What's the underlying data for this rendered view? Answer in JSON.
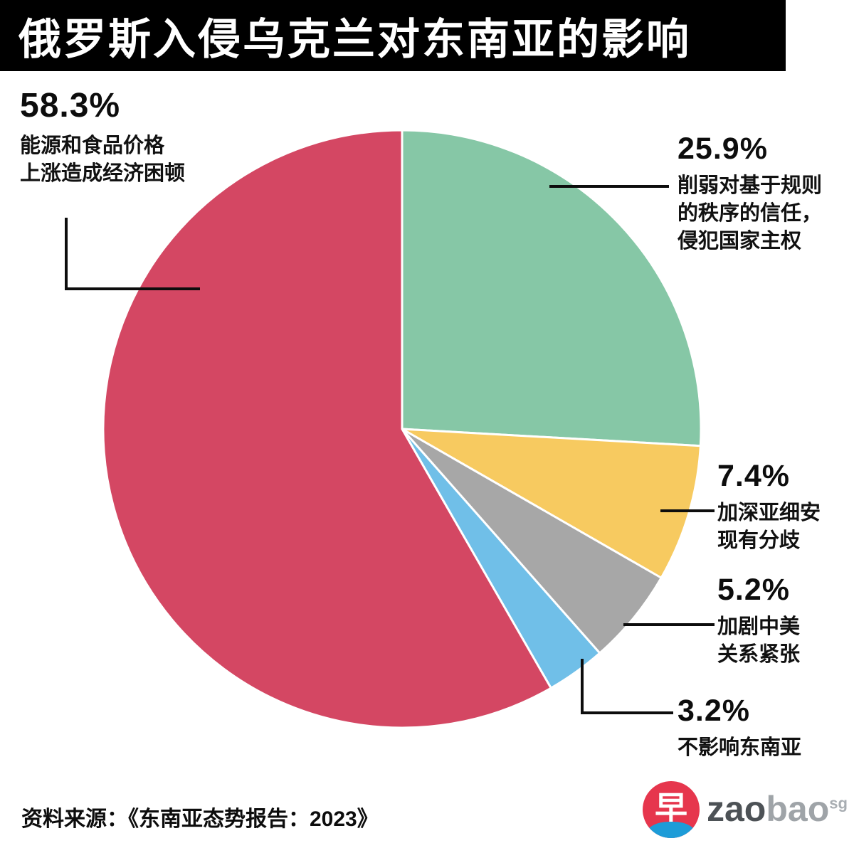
{
  "title": "俄罗斯入侵乌克兰对东南亚的影响",
  "source": "资料来源：《东南亚态势报告：2023》",
  "logo": {
    "symbol": "早",
    "brand_zao": "zao",
    "brand_bao": "bao",
    "brand_sup": "sg"
  },
  "colors": {
    "banner_bg": "#000000",
    "banner_text": "#ffffff",
    "red": "#d44763",
    "green": "#86c7a6",
    "yellow": "#f7ca60",
    "gray": "#a7a7a7",
    "blue": "#70bfe8",
    "logo_red": "#e6364d",
    "logo_blue": "#1d9cd8"
  },
  "chart_data": {
    "type": "pie",
    "title": "俄罗斯入侵乌克兰对东南亚的影响",
    "start_angle_deg": 0,
    "direction": "clockwise",
    "slices": [
      {
        "label": "削弱对基于规则的秩序的信任，侵犯国家主权",
        "value": 25.9,
        "color": "#86c7a6"
      },
      {
        "label": "加深亚细安现有分歧",
        "value": 7.4,
        "color": "#f7ca60"
      },
      {
        "label": "加剧中美关系紧张",
        "value": 5.2,
        "color": "#a7a7a7"
      },
      {
        "label": "不影响东南亚",
        "value": 3.2,
        "color": "#70bfe8"
      },
      {
        "label": "能源和食品价格上涨造成经济困顿",
        "value": 58.3,
        "color": "#d44763"
      }
    ],
    "legend_position": "callouts",
    "source": "资料来源：《东南亚态势报告：2023》"
  },
  "callouts": {
    "red": {
      "pct": "58.3%",
      "lines": [
        "能源和食品价格",
        "上涨造成经济困顿"
      ]
    },
    "green": {
      "pct": "25.9%",
      "lines": [
        "削弱对基于规则",
        "的秩序的信任，",
        "侵犯国家主权"
      ]
    },
    "yellow": {
      "pct": "7.4%",
      "lines": [
        "加深亚细安",
        "现有分歧"
      ]
    },
    "gray": {
      "pct": "5.2%",
      "lines": [
        "加剧中美",
        "关系紧张"
      ]
    },
    "blue": {
      "pct": "3.2%",
      "lines": [
        "不影响东南亚"
      ]
    }
  }
}
